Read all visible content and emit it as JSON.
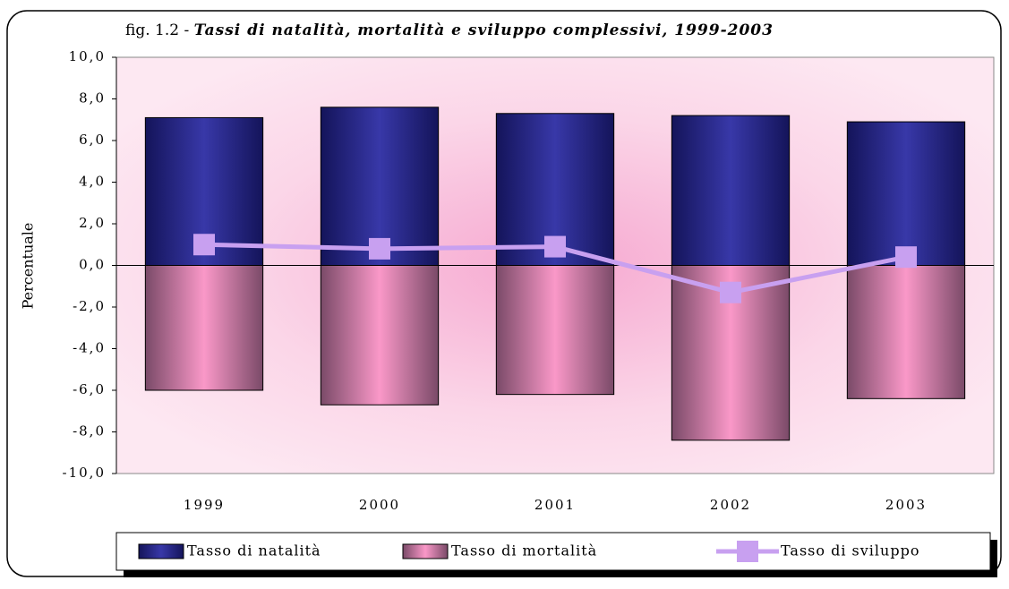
{
  "chart_data": {
    "type": "bar-line",
    "figure_label": "fig. 1.2 -",
    "title": "Tassi di natalità, mortalità e sviluppo complessivi, 1999-2003",
    "y_label": "Percentuale",
    "categories": [
      "1999",
      "2000",
      "2001",
      "2002",
      "2003"
    ],
    "series": [
      {
        "name": "Tasso di natalità",
        "type": "bar",
        "color": "#2a2a8a",
        "values": [
          7.1,
          7.6,
          7.3,
          7.2,
          6.9
        ]
      },
      {
        "name": "Tasso di mortalità",
        "type": "bar",
        "color": "#e890b8",
        "values": [
          -6.0,
          -6.7,
          -6.2,
          -8.4,
          -6.4
        ]
      },
      {
        "name": "Tasso di sviluppo",
        "type": "line",
        "color": "#c8a0f0",
        "values": [
          1.0,
          0.8,
          0.9,
          -1.3,
          0.4
        ]
      }
    ],
    "ylim": [
      -10,
      10
    ],
    "yticks": [
      {
        "value": -10,
        "label": "-10,0"
      },
      {
        "value": -8,
        "label": "-8,0"
      },
      {
        "value": -6,
        "label": "-6,0"
      },
      {
        "value": -4,
        "label": "-4,0"
      },
      {
        "value": -2,
        "label": "-2,0"
      },
      {
        "value": 0,
        "label": "0,0"
      },
      {
        "value": 2,
        "label": "2,0"
      },
      {
        "value": 4,
        "label": "4,0"
      },
      {
        "value": 6,
        "label": "6,0"
      },
      {
        "value": 8,
        "label": "8,0"
      },
      {
        "value": 10,
        "label": "10,0"
      }
    ],
    "legend": "bottom"
  }
}
